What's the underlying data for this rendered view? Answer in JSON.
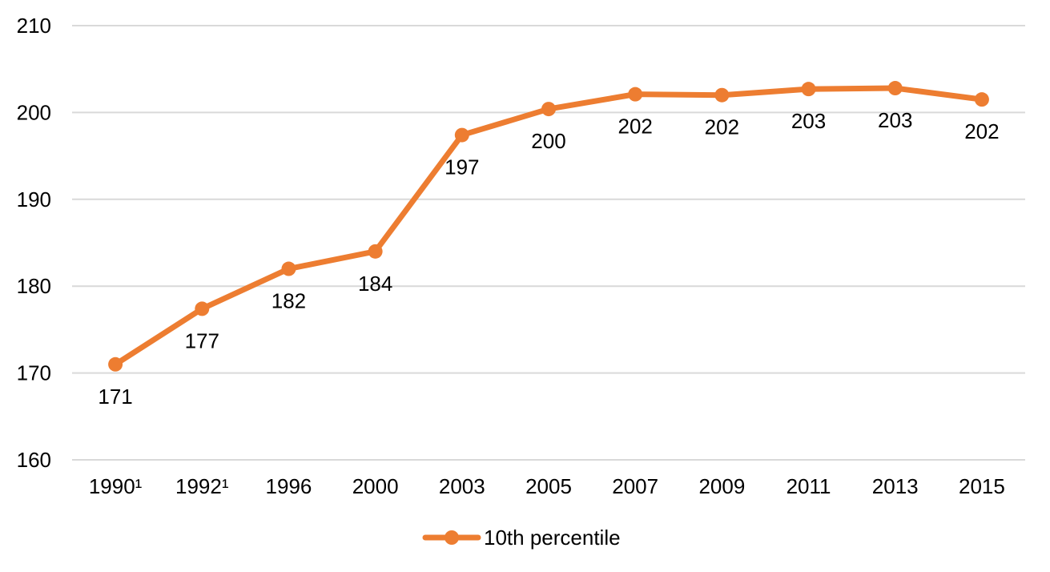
{
  "chart_data": {
    "type": "line",
    "title": "",
    "xlabel": "",
    "ylabel": "",
    "categories": [
      "1990¹",
      "1992¹",
      "1996",
      "2000",
      "2003",
      "2005",
      "2007",
      "2009",
      "2011",
      "2013",
      "2015"
    ],
    "series": [
      {
        "name": "10th percentile",
        "color": "#ed7d31",
        "values": [
          171,
          177.4,
          182,
          184,
          197.4,
          200.4,
          202.1,
          202,
          202.7,
          202.8,
          201.5
        ],
        "data_labels": [
          "171",
          "177",
          "182",
          "184",
          "197",
          "200",
          "202",
          "202",
          "203",
          "203",
          "202"
        ]
      }
    ],
    "ylim": [
      160,
      210
    ],
    "yticks": [
      160,
      170,
      180,
      190,
      200,
      210
    ],
    "grid": "horizontal",
    "legend": "bottom",
    "data_label_position": "below"
  }
}
